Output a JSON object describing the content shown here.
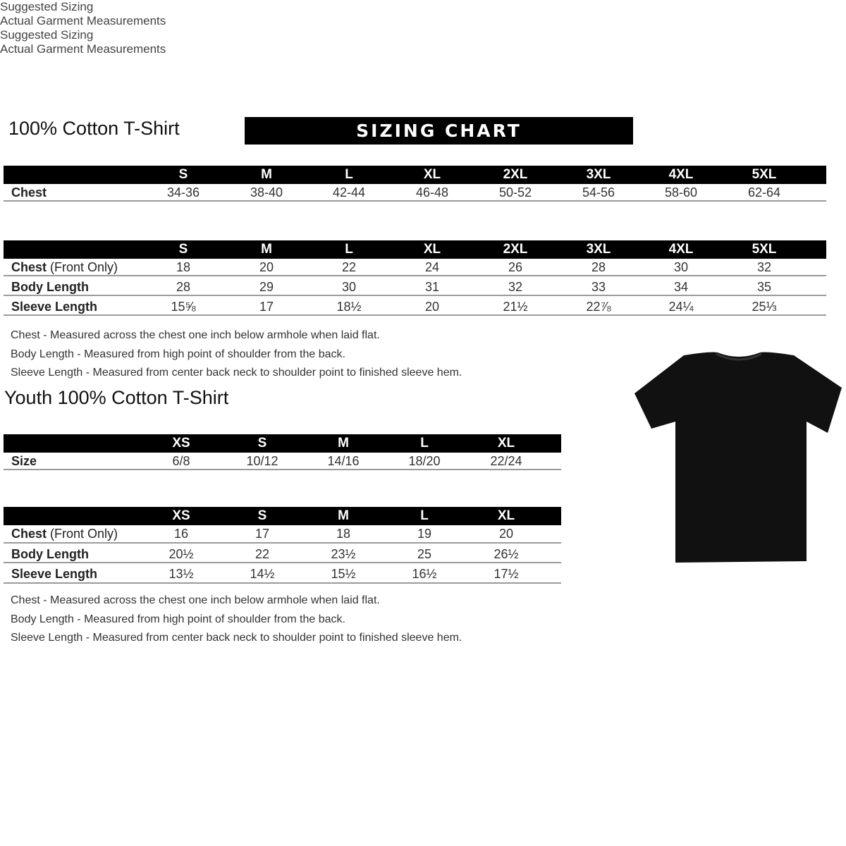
{
  "adult": {
    "title": "100% Cotton T-Shirt",
    "banner": "SIZING CHART",
    "suggested": {
      "label": "Suggested Sizing",
      "sizes": [
        "S",
        "M",
        "L",
        "XL",
        "2XL",
        "3XL",
        "4XL",
        "5XL"
      ],
      "rows": [
        {
          "label": "Chest",
          "light": "",
          "values": [
            "34-36",
            "38-40",
            "42-44",
            "46-48",
            "50-52",
            "54-56",
            "58-60",
            "62-64"
          ]
        }
      ]
    },
    "actual": {
      "label": "Actual Garment Measurements",
      "sizes": [
        "S",
        "M",
        "L",
        "XL",
        "2XL",
        "3XL",
        "4XL",
        "5XL"
      ],
      "rows": [
        {
          "label": "Chest",
          "light": " (Front Only)",
          "values": [
            "18",
            "20",
            "22",
            "24",
            "26",
            "28",
            "30",
            "32"
          ]
        },
        {
          "label": "Body Length",
          "light": "",
          "values": [
            "28",
            "29",
            "30",
            "31",
            "32",
            "33",
            "34",
            "35"
          ]
        },
        {
          "label": "Sleeve Length",
          "light": "",
          "values": [
            "15⅝",
            "17",
            "18½",
            "20",
            "21½",
            "22⅞",
            "24¼",
            "25⅓"
          ]
        }
      ]
    },
    "notes": [
      "Chest - Measured across the chest one inch below armhole when laid flat.",
      "Body Length - Measured from high point of shoulder from the back.",
      "Sleeve Length - Measured from center back neck to shoulder point to finished sleeve hem."
    ]
  },
  "youth": {
    "title": "Youth 100% Cotton T-Shirt",
    "suggested": {
      "label": "Suggested Sizing",
      "sizes": [
        "XS",
        "S",
        "M",
        "L",
        "XL"
      ],
      "rows": [
        {
          "label": "Size",
          "light": "",
          "values": [
            "6/8",
            "10/12",
            "14/16",
            "18/20",
            "22/24"
          ]
        }
      ]
    },
    "actual": {
      "label": "Actual Garment Measurements",
      "sizes": [
        "XS",
        "S",
        "M",
        "L",
        "XL"
      ],
      "rows": [
        {
          "label": "Chest",
          "light": " (Front Only)",
          "values": [
            "16",
            "17",
            "18",
            "19",
            "20"
          ]
        },
        {
          "label": "Body Length",
          "light": "",
          "values": [
            "20½",
            "22",
            "23½",
            "25",
            "26½"
          ]
        },
        {
          "label": "Sleeve Length",
          "light": "",
          "values": [
            "13½",
            "14½",
            "15½",
            "16½",
            "17½"
          ]
        }
      ]
    },
    "notes": [
      "Chest - Measured across the chest one inch below armhole when laid flat.",
      "Body Length - Measured from high point of shoulder from the back.",
      "Sleeve Length - Measured from center back neck to shoulder point to finished sleeve hem."
    ]
  },
  "image": {
    "icon": "tshirt-icon",
    "color": "#111111"
  }
}
